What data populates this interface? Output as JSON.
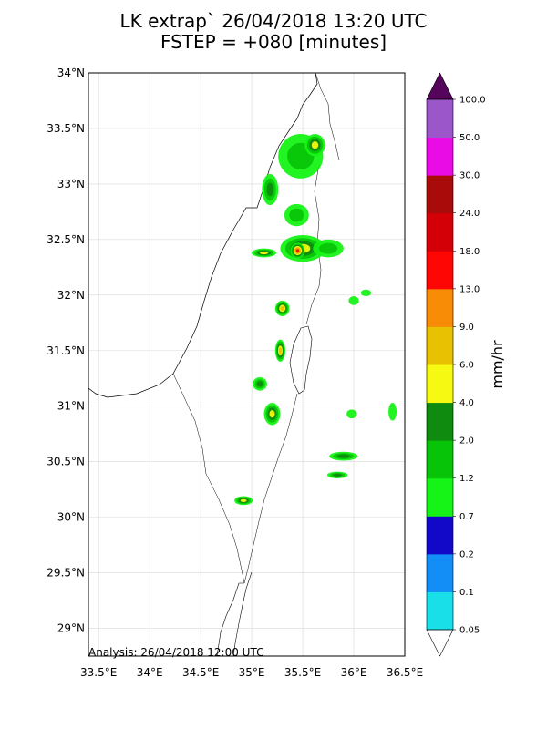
{
  "title": {
    "line1": "LK extrap` 26/04/2018 13:20 UTC",
    "line2": "FSTEP = +080 [minutes]"
  },
  "analysis_text": "Analysis: 26/04/2018 12:00 UTC",
  "map": {
    "lon_range": [
      33.4,
      36.5
    ],
    "lat_range": [
      28.75,
      34.0
    ],
    "lat_ticks": [
      {
        "value": 34.0,
        "label": "34°N"
      },
      {
        "value": 33.5,
        "label": "33.5°N"
      },
      {
        "value": 33.0,
        "label": "33°N"
      },
      {
        "value": 32.5,
        "label": "32.5°N"
      },
      {
        "value": 32.0,
        "label": "32°N"
      },
      {
        "value": 31.5,
        "label": "31.5°N"
      },
      {
        "value": 31.0,
        "label": "31°N"
      },
      {
        "value": 30.5,
        "label": "30.5°N"
      },
      {
        "value": 30.0,
        "label": "30°N"
      },
      {
        "value": 29.5,
        "label": "29.5°N"
      },
      {
        "value": 29.0,
        "label": "29°N"
      }
    ],
    "lon_ticks": [
      {
        "value": 33.5,
        "label": "33.5°E"
      },
      {
        "value": 34.0,
        "label": "34°E"
      },
      {
        "value": 34.5,
        "label": "34.5°E"
      },
      {
        "value": 35.0,
        "label": "35°E"
      },
      {
        "value": 35.5,
        "label": "35.5°E"
      },
      {
        "value": 36.0,
        "label": "36°E"
      },
      {
        "value": 36.5,
        "label": "36.5°E"
      }
    ],
    "grid": true,
    "precip_cells": [
      {
        "lon": 35.48,
        "lat": 33.25,
        "rx": 0.22,
        "ry": 0.2,
        "level": 4
      },
      {
        "lon": 35.62,
        "lat": 33.35,
        "rx": 0.1,
        "ry": 0.1,
        "level": 6
      },
      {
        "lon": 35.18,
        "lat": 32.95,
        "rx": 0.08,
        "ry": 0.14,
        "level": 5
      },
      {
        "lon": 35.44,
        "lat": 32.72,
        "rx": 0.12,
        "ry": 0.1,
        "level": 4
      },
      {
        "lon": 35.5,
        "lat": 32.42,
        "rx": 0.22,
        "ry": 0.12,
        "level": 6
      },
      {
        "lon": 35.45,
        "lat": 32.4,
        "rx": 0.07,
        "ry": 0.07,
        "level": 9
      },
      {
        "lon": 35.75,
        "lat": 32.42,
        "rx": 0.15,
        "ry": 0.08,
        "level": 4
      },
      {
        "lon": 35.12,
        "lat": 32.38,
        "rx": 0.12,
        "ry": 0.04,
        "level": 6
      },
      {
        "lon": 35.3,
        "lat": 31.88,
        "rx": 0.07,
        "ry": 0.07,
        "level": 7
      },
      {
        "lon": 35.28,
        "lat": 31.5,
        "rx": 0.05,
        "ry": 0.1,
        "level": 7
      },
      {
        "lon": 35.08,
        "lat": 31.2,
        "rx": 0.07,
        "ry": 0.06,
        "level": 5
      },
      {
        "lon": 35.2,
        "lat": 30.93,
        "rx": 0.08,
        "ry": 0.1,
        "level": 6
      },
      {
        "lon": 35.9,
        "lat": 30.55,
        "rx": 0.14,
        "ry": 0.04,
        "level": 5
      },
      {
        "lon": 35.84,
        "lat": 30.38,
        "rx": 0.1,
        "ry": 0.03,
        "level": 5
      },
      {
        "lon": 34.92,
        "lat": 30.15,
        "rx": 0.09,
        "ry": 0.04,
        "level": 6
      },
      {
        "lon": 35.98,
        "lat": 30.93,
        "rx": 0.05,
        "ry": 0.04,
        "level": 3
      },
      {
        "lon": 36.38,
        "lat": 30.95,
        "rx": 0.04,
        "ry": 0.08,
        "level": 3
      },
      {
        "lon": 36.0,
        "lat": 31.95,
        "rx": 0.05,
        "ry": 0.04,
        "level": 3
      },
      {
        "lon": 36.12,
        "lat": 32.02,
        "rx": 0.05,
        "ry": 0.03,
        "level": 3
      }
    ]
  },
  "colorbar": {
    "label": "mm/hr",
    "levels": [
      "0.05",
      "0.1",
      "0.2",
      "0.7",
      "1.2",
      "2.0",
      "4.0",
      "6.0",
      "9.0",
      "13.0",
      "18.0",
      "24.0",
      "30.0",
      "50.0",
      "100.0"
    ],
    "colors": [
      "#18dfe8",
      "#148ef7",
      "#1208c8",
      "#16f316",
      "#08c408",
      "#0f8b0f",
      "#f6f911",
      "#e7c102",
      "#f88c07",
      "#fe0604",
      "#d30007",
      "#a90a0a",
      "#e90ce4",
      "#9b56c9"
    ],
    "over_color": "#56055c",
    "under_color": "#ffffff"
  }
}
